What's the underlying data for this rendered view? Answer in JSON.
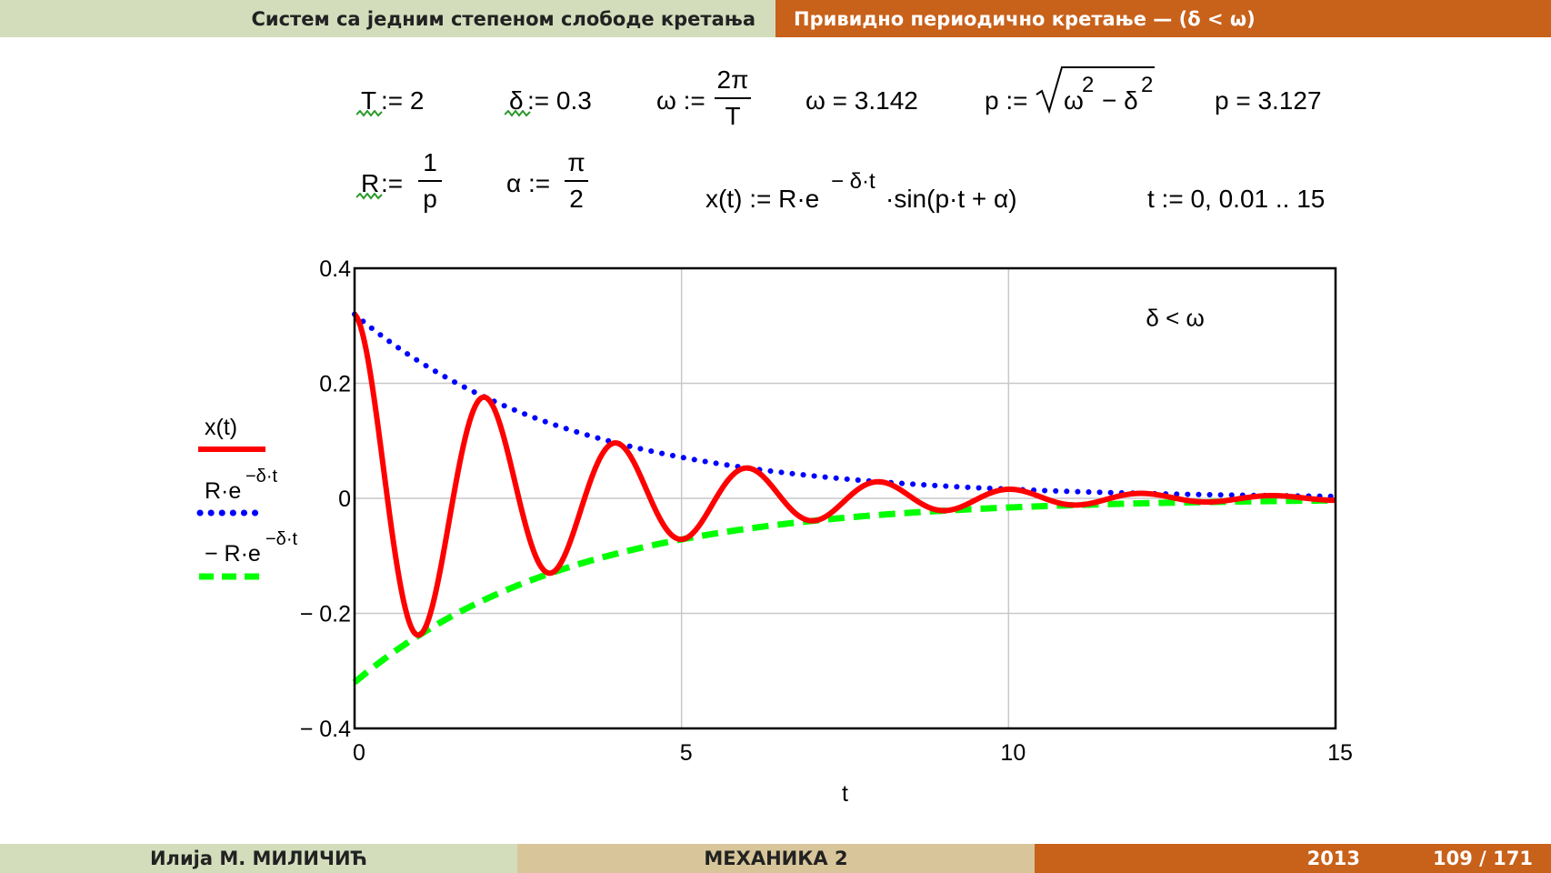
{
  "header": {
    "left": "Систем са једним степеном слободе кретања",
    "right": "Привидно периодично кретање — (δ < ω)",
    "right_bg": "#c8611a"
  },
  "formulas": {
    "T_def": ":= 2",
    "T_var": "T",
    "delta_var": "δ",
    "delta_def": ":= 0.3",
    "omega_def_lhs": "ω :=",
    "omega_num": "2π",
    "omega_den": "T",
    "omega_val": "ω = 3.142",
    "p_def_lhs": "p :=",
    "p_rad_a": "ω",
    "p_rad_exp": "2",
    "p_rad_minus": "− δ",
    "p_rad_exp2": "2",
    "p_val": "p = 3.127",
    "R_var": "R",
    "R_def_lhs": ":=",
    "R_num": "1",
    "R_den": "p",
    "alpha_def_lhs": "α :=",
    "alpha_num": "π",
    "alpha_den": "2",
    "x_def_a": "x(t) := R·e",
    "x_def_exp": "− δ·t",
    "x_def_b": "·sin(p·t + α)",
    "t_def": "t := 0, 0.01 .. 15"
  },
  "legend": {
    "item1": "x(t)",
    "item2_base": "R·e",
    "item2_exp": "−δ·t",
    "item3_base": "− R·e",
    "item3_exp": "−δ·t"
  },
  "chart_data": {
    "type": "line",
    "xlabel": "t",
    "ylabel": "",
    "xlim": [
      0,
      15
    ],
    "ylim": [
      -0.4,
      0.4
    ],
    "x_ticks": [
      "0",
      "5",
      "10",
      "15"
    ],
    "y_ticks": [
      "0.4",
      "0.2",
      "0",
      "− 0.2",
      "− 0.4"
    ],
    "grid": true,
    "annotation": "δ < ω",
    "params": {
      "T": 2,
      "delta": 0.3,
      "omega": 3.142,
      "p": 3.127,
      "R": 0.32,
      "alpha": 1.5708
    },
    "series": [
      {
        "name": "x(t)",
        "color": "#ff0000",
        "style": "solid"
      },
      {
        "name": "R·e^(−δ·t)",
        "color": "#0000ff",
        "style": "dotted"
      },
      {
        "name": "− R·e^(−δ·t)",
        "color": "#00ff00",
        "style": "dashed"
      }
    ]
  },
  "footer": {
    "author": "Илија М. МИЛИЧИЋ",
    "course": "МЕХАНИКА 2",
    "year": "2013",
    "page": "109 / 171",
    "right_bg": "#c8611a"
  }
}
